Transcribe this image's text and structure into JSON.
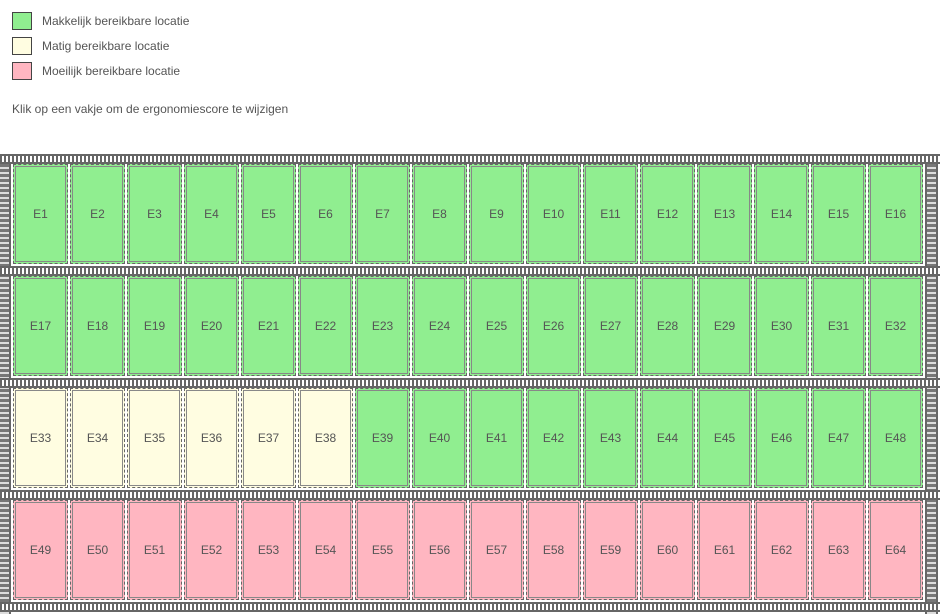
{
  "legend": [
    {
      "label": "Makkelijk bereikbare locatie",
      "color": "#90ee90"
    },
    {
      "label": "Matig bereikbare locatie",
      "color": "#fffde1"
    },
    {
      "label": "Moeilijk bereikbare locatie",
      "color": "#ffb6c1"
    }
  ],
  "instruction": "Klik op een vakje om de ergonomiescore te wijzigen",
  "rack": {
    "rows": [
      [
        {
          "label": "E1",
          "color": "#90ee90"
        },
        {
          "label": "E2",
          "color": "#90ee90"
        },
        {
          "label": "E3",
          "color": "#90ee90"
        },
        {
          "label": "E4",
          "color": "#90ee90"
        },
        {
          "label": "E5",
          "color": "#90ee90"
        },
        {
          "label": "E6",
          "color": "#90ee90"
        },
        {
          "label": "E7",
          "color": "#90ee90"
        },
        {
          "label": "E8",
          "color": "#90ee90"
        },
        {
          "label": "E9",
          "color": "#90ee90"
        },
        {
          "label": "E10",
          "color": "#90ee90"
        },
        {
          "label": "E11",
          "color": "#90ee90"
        },
        {
          "label": "E12",
          "color": "#90ee90"
        },
        {
          "label": "E13",
          "color": "#90ee90"
        },
        {
          "label": "E14",
          "color": "#90ee90"
        },
        {
          "label": "E15",
          "color": "#90ee90"
        },
        {
          "label": "E16",
          "color": "#90ee90"
        }
      ],
      [
        {
          "label": "E17",
          "color": "#90ee90"
        },
        {
          "label": "E18",
          "color": "#90ee90"
        },
        {
          "label": "E19",
          "color": "#90ee90"
        },
        {
          "label": "E20",
          "color": "#90ee90"
        },
        {
          "label": "E21",
          "color": "#90ee90"
        },
        {
          "label": "E22",
          "color": "#90ee90"
        },
        {
          "label": "E23",
          "color": "#90ee90"
        },
        {
          "label": "E24",
          "color": "#90ee90"
        },
        {
          "label": "E25",
          "color": "#90ee90"
        },
        {
          "label": "E26",
          "color": "#90ee90"
        },
        {
          "label": "E27",
          "color": "#90ee90"
        },
        {
          "label": "E28",
          "color": "#90ee90"
        },
        {
          "label": "E29",
          "color": "#90ee90"
        },
        {
          "label": "E30",
          "color": "#90ee90"
        },
        {
          "label": "E31",
          "color": "#90ee90"
        },
        {
          "label": "E32",
          "color": "#90ee90"
        }
      ],
      [
        {
          "label": "E33",
          "color": "#fffde1"
        },
        {
          "label": "E34",
          "color": "#fffde1"
        },
        {
          "label": "E35",
          "color": "#fffde1"
        },
        {
          "label": "E36",
          "color": "#fffde1"
        },
        {
          "label": "E37",
          "color": "#fffde1"
        },
        {
          "label": "E38",
          "color": "#fffde1"
        },
        {
          "label": "E39",
          "color": "#90ee90"
        },
        {
          "label": "E40",
          "color": "#90ee90"
        },
        {
          "label": "E41",
          "color": "#90ee90"
        },
        {
          "label": "E42",
          "color": "#90ee90"
        },
        {
          "label": "E43",
          "color": "#90ee90"
        },
        {
          "label": "E44",
          "color": "#90ee90"
        },
        {
          "label": "E45",
          "color": "#90ee90"
        },
        {
          "label": "E46",
          "color": "#90ee90"
        },
        {
          "label": "E47",
          "color": "#90ee90"
        },
        {
          "label": "E48",
          "color": "#90ee90"
        }
      ],
      [
        {
          "label": "E49",
          "color": "#ffb6c1"
        },
        {
          "label": "E50",
          "color": "#ffb6c1"
        },
        {
          "label": "E51",
          "color": "#ffb6c1"
        },
        {
          "label": "E52",
          "color": "#ffb6c1"
        },
        {
          "label": "E53",
          "color": "#ffb6c1"
        },
        {
          "label": "E54",
          "color": "#ffb6c1"
        },
        {
          "label": "E55",
          "color": "#ffb6c1"
        },
        {
          "label": "E56",
          "color": "#ffb6c1"
        },
        {
          "label": "E57",
          "color": "#ffb6c1"
        },
        {
          "label": "E58",
          "color": "#ffb6c1"
        },
        {
          "label": "E59",
          "color": "#ffb6c1"
        },
        {
          "label": "E60",
          "color": "#ffb6c1"
        },
        {
          "label": "E61",
          "color": "#ffb6c1"
        },
        {
          "label": "E62",
          "color": "#ffb6c1"
        },
        {
          "label": "E63",
          "color": "#ffb6c1"
        },
        {
          "label": "E64",
          "color": "#ffb6c1"
        }
      ]
    ]
  }
}
